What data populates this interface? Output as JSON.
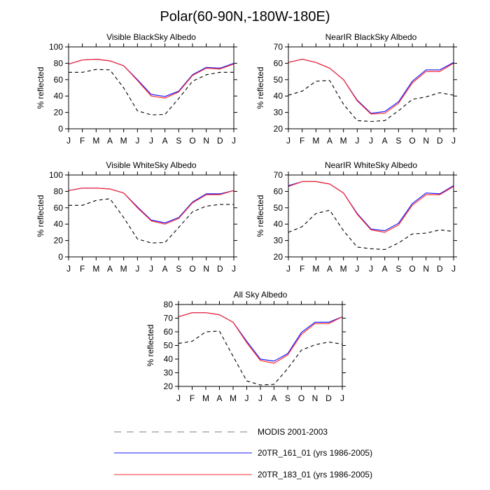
{
  "figure": {
    "title": "Polar(60-90N,-180W-180E)"
  },
  "legend": {
    "entries": [
      {
        "label": "MODIS 2001-2003",
        "color": "#000000",
        "style": "dashed"
      },
      {
        "label": "20TR_161_01 (yrs 1986-2005)",
        "color": "#1a1aff",
        "style": "solid"
      },
      {
        "label": "20TR_183_01 (yrs 1986-2005)",
        "color": "#ff2a2a",
        "style": "solid"
      }
    ]
  },
  "chart_data": [
    {
      "type": "line",
      "title": "Visible BlackSky Albedo",
      "ylabel": "% reflected",
      "categories": [
        "J",
        "F",
        "M",
        "A",
        "M",
        "J",
        "J",
        "A",
        "S",
        "O",
        "N",
        "D",
        "J"
      ],
      "ylim": [
        0,
        100
      ],
      "yticks": [
        0,
        20,
        40,
        60,
        80,
        100
      ],
      "series": [
        {
          "name": "MODIS 2001-2003",
          "values": [
            69,
            69,
            72.5,
            72,
            50,
            22,
            17,
            17.5,
            37,
            58,
            66,
            69,
            69
          ]
        },
        {
          "name": "20TR_161_01 (yrs 1986-2005)",
          "values": [
            79,
            84,
            85,
            83,
            77,
            60,
            42,
            39.5,
            46,
            66,
            75,
            74,
            80
          ]
        },
        {
          "name": "20TR_183_01 (yrs 1986-2005)",
          "values": [
            79,
            84,
            85,
            83,
            77,
            59,
            40,
            37.5,
            45,
            65,
            74,
            73,
            79
          ]
        }
      ]
    },
    {
      "type": "line",
      "title": "NearIR BlackSky Albedo",
      "ylabel": "% reflected",
      "categories": [
        "J",
        "F",
        "M",
        "A",
        "M",
        "J",
        "J",
        "A",
        "S",
        "O",
        "N",
        "D",
        "J"
      ],
      "ylim": [
        20,
        70
      ],
      "yticks": [
        20,
        30,
        40,
        50,
        60,
        70
      ],
      "series": [
        {
          "name": "MODIS 2001-2003",
          "values": [
            40.5,
            43,
            49,
            49.5,
            35,
            25,
            24.5,
            25,
            31,
            38,
            39.5,
            42,
            40.5
          ]
        },
        {
          "name": "20TR_161_01 (yrs 1986-2005)",
          "values": [
            60.5,
            62.5,
            60.5,
            57,
            50,
            37.5,
            29.5,
            30.5,
            36.5,
            49,
            56,
            56,
            60.5
          ]
        },
        {
          "name": "20TR_183_01 (yrs 1986-2005)",
          "values": [
            60.5,
            62.5,
            60.5,
            57,
            50,
            37,
            29,
            29.5,
            35.5,
            48,
            55,
            55,
            60
          ]
        }
      ]
    },
    {
      "type": "line",
      "title": "Visible WhiteSky Albedo",
      "ylabel": "% reflected",
      "categories": [
        "J",
        "F",
        "M",
        "A",
        "M",
        "J",
        "J",
        "A",
        "S",
        "O",
        "N",
        "D",
        "J"
      ],
      "ylim": [
        0,
        100
      ],
      "yticks": [
        0,
        20,
        40,
        60,
        80,
        100
      ],
      "series": [
        {
          "name": "MODIS 2001-2003",
          "values": [
            63,
            63,
            69,
            71,
            48,
            22,
            17,
            17.5,
            36,
            55,
            62,
            64,
            64
          ]
        },
        {
          "name": "20TR_161_01 (yrs 1986-2005)",
          "values": [
            81,
            84,
            84,
            83,
            78,
            61,
            45,
            41.5,
            48,
            67,
            77,
            77,
            81
          ]
        },
        {
          "name": "20TR_183_01 (yrs 1986-2005)",
          "values": [
            81,
            84,
            84,
            83,
            78,
            60,
            44,
            40,
            47,
            66,
            76,
            76,
            81
          ]
        }
      ]
    },
    {
      "type": "line",
      "title": "NearIR WhiteSky Albedo",
      "ylabel": "% reflected",
      "categories": [
        "J",
        "F",
        "M",
        "A",
        "M",
        "J",
        "J",
        "A",
        "S",
        "O",
        "N",
        "D",
        "J"
      ],
      "ylim": [
        20,
        70
      ],
      "yticks": [
        20,
        30,
        40,
        50,
        60,
        70
      ],
      "series": [
        {
          "name": "MODIS 2001-2003",
          "values": [
            35,
            38.5,
            46.5,
            48.5,
            36,
            26,
            25,
            24.5,
            28.5,
            34,
            34.5,
            36.5,
            35.5
          ]
        },
        {
          "name": "20TR_161_01 (yrs 1986-2005)",
          "values": [
            63.5,
            66,
            66,
            64.5,
            59,
            46.5,
            37,
            36,
            40.5,
            52.5,
            59,
            58.5,
            63.5
          ]
        },
        {
          "name": "20TR_183_01 (yrs 1986-2005)",
          "values": [
            63,
            66,
            66,
            64.5,
            59,
            46,
            36.5,
            35,
            39.5,
            51.5,
            58,
            58,
            63
          ]
        }
      ]
    },
    {
      "type": "line",
      "title": "All Sky Albedo",
      "ylabel": "% reflected",
      "categories": [
        "J",
        "F",
        "M",
        "A",
        "M",
        "J",
        "J",
        "A",
        "S",
        "O",
        "N",
        "D",
        "J"
      ],
      "ylim": [
        20,
        80
      ],
      "yticks": [
        20,
        30,
        40,
        50,
        60,
        70,
        80
      ],
      "series": [
        {
          "name": "MODIS 2001-2003",
          "values": [
            51.5,
            53,
            60,
            60.5,
            42,
            24,
            21,
            21.5,
            33,
            46.5,
            50.5,
            52.5,
            51
          ]
        },
        {
          "name": "20TR_161_01 (yrs 1986-2005)",
          "values": [
            71,
            74,
            74,
            72.5,
            67,
            53,
            40,
            38.5,
            44,
            59.5,
            67,
            67,
            71
          ]
        },
        {
          "name": "20TR_183_01 (yrs 1986-2005)",
          "values": [
            71,
            74,
            74,
            72.5,
            67,
            52,
            39,
            37,
            43,
            58,
            66,
            66,
            71
          ]
        }
      ]
    }
  ]
}
